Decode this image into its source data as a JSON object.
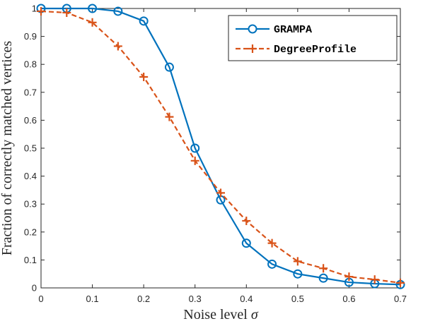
{
  "chart_data": {
    "type": "line",
    "xlabel": "Noise level",
    "xlabel_symbol": "σ",
    "ylabel": "Fraction of correctly matched vertices",
    "xlim": [
      0,
      0.7
    ],
    "ylim": [
      0,
      1
    ],
    "xticks": [
      0,
      0.1,
      0.2,
      0.3,
      0.4,
      0.5,
      0.6,
      0.7
    ],
    "xtick_labels": [
      "0",
      "0.1",
      "0.2",
      "0.3",
      "0.4",
      "0.5",
      "0.6",
      "0.7"
    ],
    "yticks": [
      0,
      0.1,
      0.2,
      0.3,
      0.4,
      0.5,
      0.6,
      0.7,
      0.8,
      0.9,
      1
    ],
    "ytick_labels": [
      "0",
      "0.1",
      "0.2",
      "0.3",
      "0.4",
      "0.5",
      "0.6",
      "0.7",
      "0.8",
      "0.9",
      "1"
    ],
    "grid": false,
    "legend_position": "top-right",
    "x": [
      0,
      0.05,
      0.1,
      0.15,
      0.2,
      0.25,
      0.3,
      0.35,
      0.4,
      0.45,
      0.5,
      0.55,
      0.6,
      0.65,
      0.7
    ],
    "series": [
      {
        "name": "GRAMPA",
        "color": "#0072BD",
        "marker": "circle",
        "line_style": "solid",
        "values": [
          1.0,
          1.0,
          1.0,
          0.99,
          0.955,
          0.79,
          0.5,
          0.315,
          0.16,
          0.085,
          0.05,
          0.035,
          0.02,
          0.015,
          0.012
        ]
      },
      {
        "name": "DegreeProfile",
        "color": "#D95319",
        "marker": "plus",
        "line_style": "dashed",
        "values": [
          0.99,
          0.985,
          0.95,
          0.865,
          0.755,
          0.612,
          0.455,
          0.34,
          0.24,
          0.16,
          0.095,
          0.07,
          0.04,
          0.03,
          0.018
        ]
      }
    ]
  }
}
